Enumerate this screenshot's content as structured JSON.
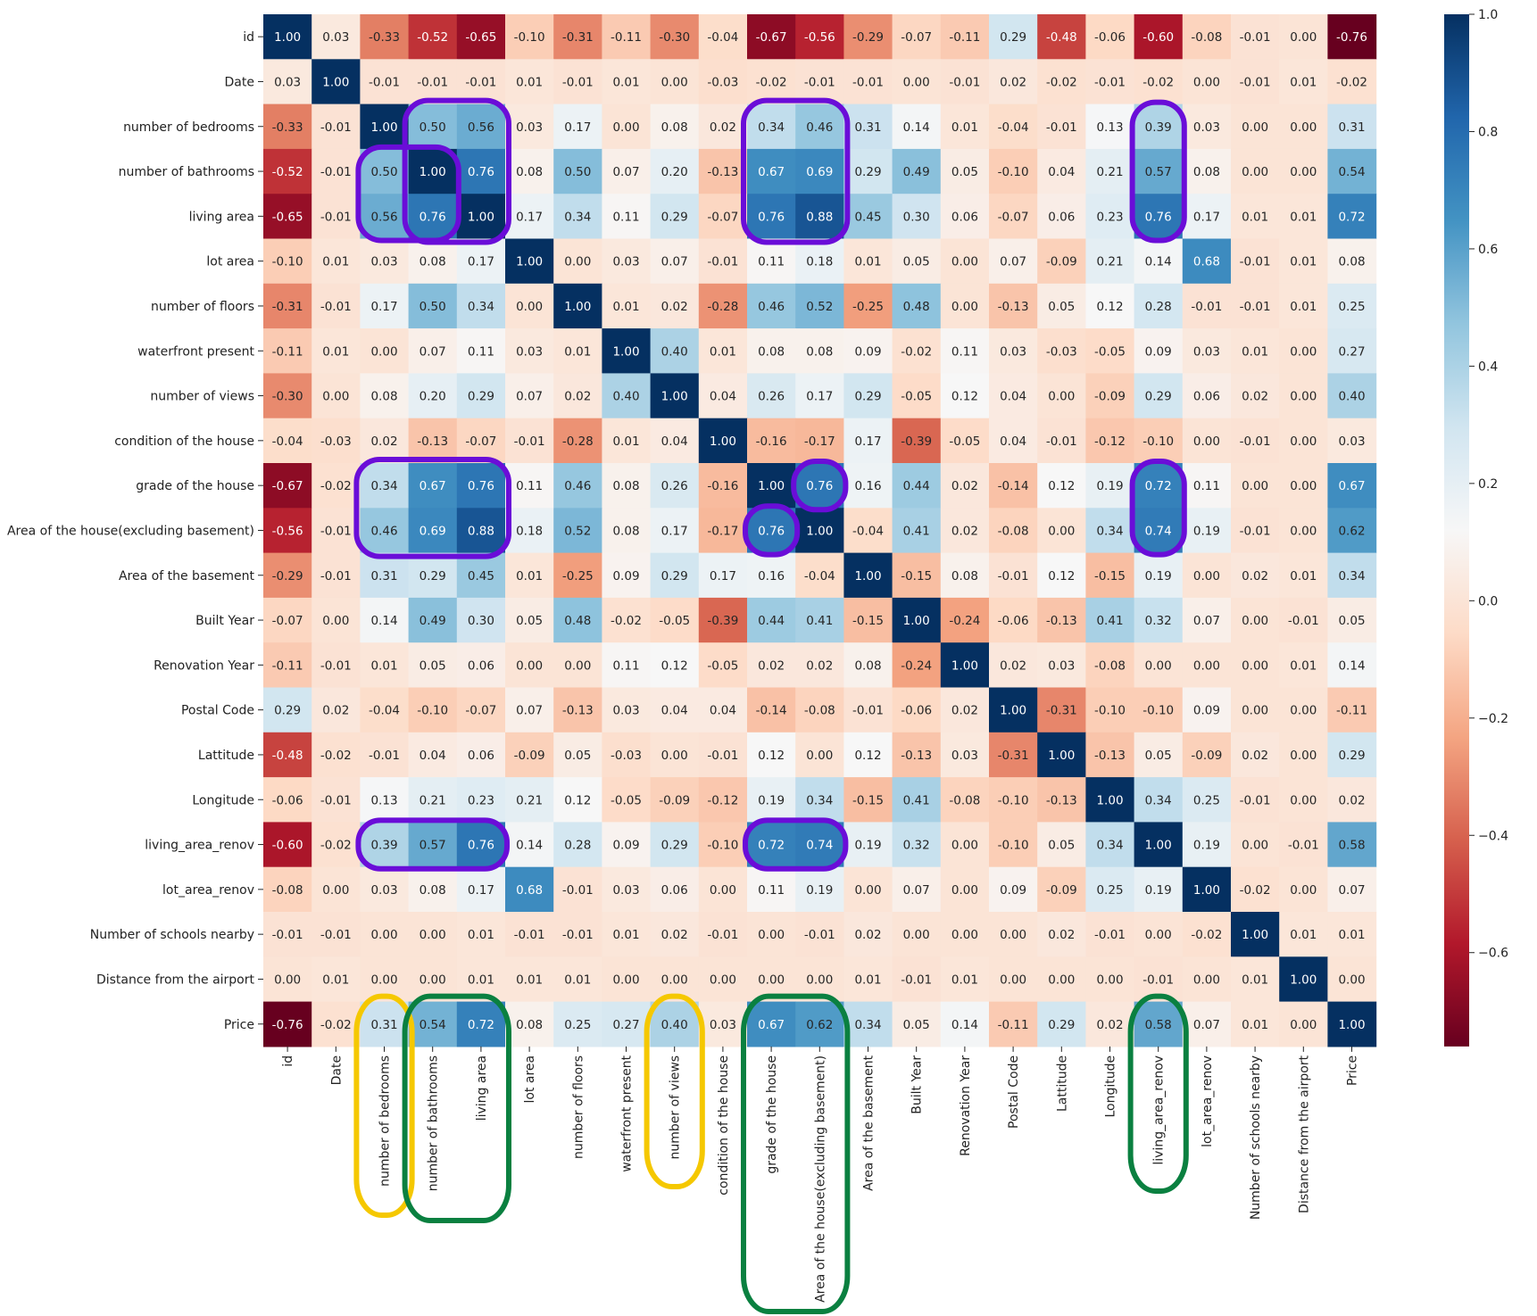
{
  "chart_data": {
    "type": "heatmap",
    "title": "",
    "xlabel": "",
    "ylabel": "",
    "labels": [
      "id",
      "Date",
      "number of bedrooms",
      "number of bathrooms",
      "living area",
      "lot area",
      "number of floors",
      "waterfront present",
      "number of views",
      "condition of the house",
      "grade of the house",
      "Area of the house(excluding basement)",
      "Area of the basement",
      "Built Year",
      "Renovation Year",
      "Postal Code",
      "Lattitude",
      "Longitude",
      "living_area_renov",
      "lot_area_renov",
      "Number of schools nearby",
      "Distance from the airport",
      "Price"
    ],
    "values": [
      [
        1.0,
        0.03,
        -0.33,
        -0.52,
        -0.65,
        -0.1,
        -0.31,
        -0.11,
        -0.3,
        -0.04,
        -0.67,
        -0.56,
        -0.29,
        -0.07,
        -0.11,
        0.29,
        -0.48,
        -0.06,
        -0.6,
        -0.08,
        -0.01,
        -0.0,
        -0.76
      ],
      [
        0.03,
        1.0,
        -0.01,
        -0.01,
        -0.01,
        0.01,
        -0.01,
        0.01,
        -0.0,
        -0.03,
        -0.02,
        -0.01,
        -0.01,
        -0.0,
        -0.01,
        0.02,
        -0.02,
        -0.01,
        -0.02,
        0.0,
        -0.01,
        0.01,
        -0.02
      ],
      [
        -0.33,
        -0.01,
        1.0,
        0.5,
        0.56,
        0.03,
        0.17,
        -0.0,
        0.08,
        0.02,
        0.34,
        0.46,
        0.31,
        0.14,
        0.01,
        -0.04,
        -0.01,
        0.13,
        0.39,
        0.03,
        0.0,
        -0.0,
        0.31
      ],
      [
        -0.52,
        -0.01,
        0.5,
        1.0,
        0.76,
        0.08,
        0.5,
        0.07,
        0.2,
        -0.13,
        0.67,
        0.69,
        0.29,
        0.49,
        0.05,
        -0.1,
        0.04,
        0.21,
        0.57,
        0.08,
        0.0,
        0.0,
        0.54
      ],
      [
        -0.65,
        -0.01,
        0.56,
        0.76,
        1.0,
        0.17,
        0.34,
        0.11,
        0.29,
        -0.07,
        0.76,
        0.88,
        0.45,
        0.3,
        0.06,
        -0.07,
        0.06,
        0.23,
        0.76,
        0.17,
        0.01,
        0.01,
        0.72
      ],
      [
        -0.1,
        0.01,
        0.03,
        0.08,
        0.17,
        1.0,
        -0.0,
        0.03,
        0.07,
        -0.01,
        0.11,
        0.18,
        0.01,
        0.05,
        -0.0,
        0.07,
        -0.09,
        0.21,
        0.14,
        0.68,
        -0.01,
        0.01,
        0.08
      ],
      [
        -0.31,
        -0.01,
        0.17,
        0.5,
        0.34,
        -0.0,
        1.0,
        0.01,
        0.02,
        -0.28,
        0.46,
        0.52,
        -0.25,
        0.48,
        0.0,
        -0.13,
        0.05,
        0.12,
        0.28,
        -0.01,
        -0.01,
        0.01,
        0.25
      ],
      [
        -0.11,
        0.01,
        -0.0,
        0.07,
        0.11,
        0.03,
        0.01,
        1.0,
        0.4,
        0.01,
        0.08,
        0.08,
        0.09,
        -0.02,
        0.11,
        0.03,
        -0.03,
        -0.05,
        0.09,
        0.03,
        0.01,
        0.0,
        0.27
      ],
      [
        -0.3,
        -0.0,
        0.08,
        0.2,
        0.29,
        0.07,
        0.02,
        0.4,
        1.0,
        0.04,
        0.26,
        0.17,
        0.29,
        -0.05,
        0.12,
        0.04,
        0.0,
        -0.09,
        0.29,
        0.06,
        0.02,
        0.0,
        0.4
      ],
      [
        -0.04,
        -0.03,
        0.02,
        -0.13,
        -0.07,
        -0.01,
        -0.28,
        0.01,
        0.04,
        1.0,
        -0.16,
        -0.17,
        0.17,
        -0.39,
        -0.05,
        0.04,
        -0.01,
        -0.12,
        -0.1,
        -0.0,
        -0.01,
        -0.0,
        0.03
      ],
      [
        -0.67,
        -0.02,
        0.34,
        0.67,
        0.76,
        0.11,
        0.46,
        0.08,
        0.26,
        -0.16,
        1.0,
        0.76,
        0.16,
        0.44,
        0.02,
        -0.14,
        0.12,
        0.19,
        0.72,
        0.11,
        0.0,
        0.0,
        0.67
      ],
      [
        -0.56,
        -0.01,
        0.46,
        0.69,
        0.88,
        0.18,
        0.52,
        0.08,
        0.17,
        -0.17,
        0.76,
        1.0,
        -0.04,
        0.41,
        0.02,
        -0.08,
        0.0,
        0.34,
        0.74,
        0.19,
        -0.01,
        0.0,
        0.62
      ],
      [
        -0.29,
        -0.01,
        0.31,
        0.29,
        0.45,
        0.01,
        -0.25,
        0.09,
        0.29,
        0.17,
        0.16,
        -0.04,
        1.0,
        -0.15,
        0.08,
        -0.01,
        0.12,
        -0.15,
        0.19,
        0.0,
        0.02,
        0.01,
        0.34
      ],
      [
        -0.07,
        -0.0,
        0.14,
        0.49,
        0.3,
        0.05,
        0.48,
        -0.02,
        -0.05,
        -0.39,
        0.44,
        0.41,
        -0.15,
        1.0,
        -0.24,
        -0.06,
        -0.13,
        0.41,
        0.32,
        0.07,
        -0.0,
        -0.01,
        0.05
      ],
      [
        -0.11,
        -0.01,
        0.01,
        0.05,
        0.06,
        -0.0,
        0.0,
        0.11,
        0.12,
        -0.05,
        0.02,
        0.02,
        0.08,
        -0.24,
        1.0,
        0.02,
        0.03,
        -0.08,
        0.0,
        0.0,
        0.0,
        0.01,
        0.14
      ],
      [
        0.29,
        0.02,
        -0.04,
        -0.1,
        -0.07,
        0.07,
        -0.13,
        0.03,
        0.04,
        0.04,
        -0.14,
        -0.08,
        -0.01,
        -0.06,
        0.02,
        1.0,
        -0.31,
        -0.1,
        -0.1,
        0.09,
        0.0,
        -0.0,
        -0.11
      ],
      [
        -0.48,
        -0.02,
        -0.01,
        0.04,
        0.06,
        -0.09,
        0.05,
        -0.03,
        0.0,
        -0.01,
        0.12,
        0.0,
        0.12,
        -0.13,
        0.03,
        -0.31,
        1.0,
        -0.13,
        0.05,
        -0.09,
        0.02,
        0.0,
        0.29
      ],
      [
        -0.06,
        -0.01,
        0.13,
        0.21,
        0.23,
        0.21,
        0.12,
        -0.05,
        -0.09,
        -0.12,
        0.19,
        0.34,
        -0.15,
        0.41,
        -0.08,
        -0.1,
        -0.13,
        1.0,
        0.34,
        0.25,
        -0.01,
        0.0,
        0.02
      ],
      [
        -0.6,
        -0.02,
        0.39,
        0.57,
        0.76,
        0.14,
        0.28,
        0.09,
        0.29,
        -0.1,
        0.72,
        0.74,
        0.19,
        0.32,
        0.0,
        -0.1,
        0.05,
        0.34,
        1.0,
        0.19,
        -0.0,
        -0.01,
        0.58
      ],
      [
        -0.08,
        0.0,
        0.03,
        0.08,
        0.17,
        0.68,
        -0.01,
        0.03,
        0.06,
        -0.0,
        0.11,
        0.19,
        0.0,
        0.07,
        0.0,
        0.09,
        -0.09,
        0.25,
        0.19,
        1.0,
        -0.02,
        -0.0,
        0.07
      ],
      [
        -0.01,
        -0.01,
        0.0,
        0.0,
        0.01,
        -0.01,
        -0.01,
        0.01,
        0.02,
        -0.01,
        0.0,
        -0.01,
        0.02,
        -0.0,
        0.0,
        0.0,
        0.02,
        -0.01,
        -0.0,
        -0.02,
        1.0,
        0.01,
        0.01
      ],
      [
        -0.0,
        0.01,
        -0.0,
        0.0,
        0.01,
        0.01,
        0.01,
        0.0,
        0.0,
        -0.0,
        0.0,
        0.0,
        0.01,
        -0.01,
        0.01,
        -0.0,
        0.0,
        0.0,
        -0.01,
        -0.0,
        0.01,
        1.0,
        -0.0
      ],
      [
        -0.76,
        -0.02,
        0.31,
        0.54,
        0.72,
        0.08,
        0.25,
        0.27,
        0.4,
        0.03,
        0.67,
        0.62,
        0.34,
        0.05,
        0.14,
        -0.11,
        0.29,
        0.02,
        0.58,
        0.07,
        0.01,
        -0.0,
        1.0
      ]
    ],
    "vmin": -0.76,
    "vmax": 1.0,
    "colormap": "RdBu",
    "colorbar_ticks": [
      "1.0",
      "0.8",
      "0.6",
      "0.4",
      "0.2",
      "0.0",
      "−0.2",
      "−0.4",
      "−0.6"
    ],
    "colorbar_tick_values": [
      1.0,
      0.8,
      0.6,
      0.4,
      0.2,
      0.0,
      -0.2,
      -0.4,
      -0.6
    ],
    "grid": false,
    "legend": "colorbar-right",
    "annotations": [
      {
        "color": "#6a0dd8",
        "style": "hand-drawn circle",
        "rows": [
          2,
          4
        ],
        "cols": [
          3,
          4
        ]
      },
      {
        "color": "#6a0dd8",
        "style": "hand-drawn circle",
        "rows": [
          3,
          4
        ],
        "cols": [
          2,
          3
        ]
      },
      {
        "color": "#6a0dd8",
        "style": "hand-drawn circle",
        "rows": [
          2,
          4
        ],
        "cols": [
          10,
          11
        ]
      },
      {
        "color": "#6a0dd8",
        "style": "hand-drawn circle",
        "rows": [
          2,
          4
        ],
        "cols": [
          18,
          18
        ]
      },
      {
        "color": "#6a0dd8",
        "style": "hand-drawn circle",
        "rows": [
          10,
          11
        ],
        "cols": [
          2,
          4
        ]
      },
      {
        "color": "#6a0dd8",
        "style": "hand-drawn circle",
        "rows": [
          10,
          10
        ],
        "cols": [
          11,
          11
        ]
      },
      {
        "color": "#6a0dd8",
        "style": "hand-drawn circle",
        "rows": [
          11,
          11
        ],
        "cols": [
          10,
          10
        ]
      },
      {
        "color": "#6a0dd8",
        "style": "hand-drawn circle",
        "rows": [
          10,
          11
        ],
        "cols": [
          18,
          18
        ]
      },
      {
        "color": "#6a0dd8",
        "style": "hand-drawn circle",
        "rows": [
          18,
          18
        ],
        "cols": [
          2,
          4
        ]
      },
      {
        "color": "#6a0dd8",
        "style": "hand-drawn circle",
        "rows": [
          18,
          18
        ],
        "cols": [
          10,
          11
        ]
      },
      {
        "color": "#f5c800",
        "style": "hand-drawn loop",
        "target": "number of bedrooms"
      },
      {
        "color": "#f5c800",
        "style": "hand-drawn loop",
        "target": "number of views"
      },
      {
        "color": "#0a8040",
        "style": "hand-drawn loop",
        "target": "number of bathrooms, living area"
      },
      {
        "color": "#0a8040",
        "style": "hand-drawn loop",
        "target": "grade of the house, Area of the house(excluding basement)"
      },
      {
        "color": "#0a8040",
        "style": "hand-drawn loop",
        "target": "living_area_renov"
      }
    ]
  }
}
